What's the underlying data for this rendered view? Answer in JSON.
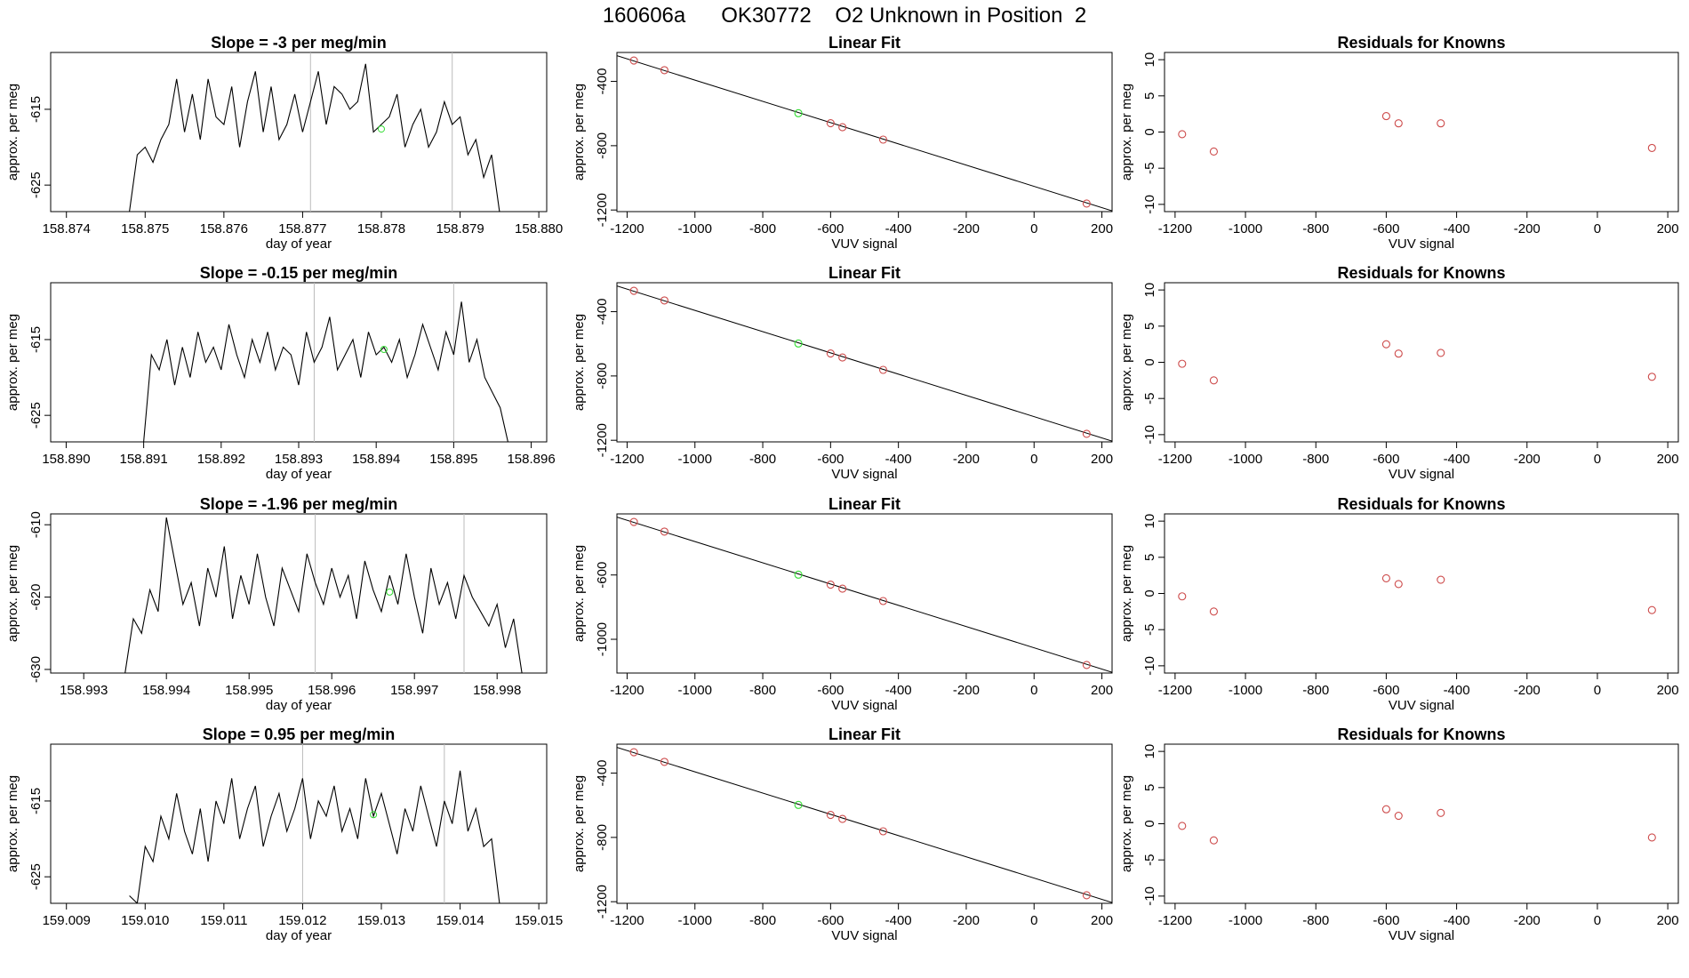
{
  "title": "160606a      OK30772    O2 Unknown in Position  2",
  "colors": {
    "trace": "#000000",
    "known": "#cd4b4b",
    "unknown": "#33dd33",
    "gridline": "#bbbbbb",
    "fitline": "#000000"
  },
  "chart_data": [
    {
      "type": "line",
      "panel": "time-series",
      "row": 1,
      "title": "Slope =  -3  per meg/min",
      "xlabel": "day of year",
      "ylabel": "approx. per meg",
      "xlim": [
        158.8738,
        158.8801
      ],
      "ylim": [
        -628.5,
        -607.5
      ],
      "xticks": [
        "158.874",
        "158.875",
        "158.876",
        "158.877",
        "158.878",
        "158.879",
        "158.880"
      ],
      "yticks": [
        "-615",
        "-625"
      ],
      "vlines": [
        158.8771,
        158.8789
      ],
      "series": [
        {
          "x": [
            158.8748,
            158.8749,
            158.875,
            158.8751,
            158.8752,
            158.8753,
            158.8754,
            158.8755,
            158.8756,
            158.8757,
            158.8758,
            158.8759,
            158.876,
            158.8761,
            158.8762,
            158.8763,
            158.8764,
            158.8765,
            158.8766,
            158.8767,
            158.8768,
            158.8769,
            158.877,
            158.8771,
            158.8772,
            158.8773,
            158.8774,
            158.8775,
            158.8776,
            158.8777,
            158.8778,
            158.8779,
            158.878,
            158.8781,
            158.8782,
            158.8783,
            158.8784,
            158.8785,
            158.8786,
            158.8787,
            158.8788,
            158.8789,
            158.879,
            158.8791,
            158.8792,
            158.8793,
            158.8794,
            158.8795
          ],
          "y": [
            -628.5,
            -621,
            -620,
            -622,
            -619,
            -617,
            -611,
            -618,
            -613,
            -619,
            -611,
            -616,
            -617,
            -612,
            -620,
            -614,
            -610,
            -618,
            -612,
            -619,
            -617,
            -613,
            -618,
            -614,
            -610,
            -617,
            -612,
            -613,
            -615,
            -614,
            -609,
            -618,
            -617,
            -616,
            -613,
            -620,
            -617,
            -615,
            -620,
            -618,
            -614,
            -617,
            -616,
            -621,
            -619,
            -624,
            -621,
            -628.5
          ]
        }
      ],
      "unknown_point": {
        "x": 158.878,
        "y": -617.6
      }
    },
    {
      "type": "scatter",
      "panel": "linear-fit",
      "row": 1,
      "title": "Linear Fit",
      "xlabel": "VUV signal",
      "ylabel": "approx. per meg",
      "xlim": [
        -1230,
        230
      ],
      "ylim": [
        -1210,
        -220
      ],
      "xticks": [
        "-1200",
        "-1000",
        "-800",
        "-600",
        "-400",
        "-200",
        "0",
        "200"
      ],
      "yticks": [
        "-400",
        "-800",
        "-1200"
      ],
      "line": {
        "x": [
          -1230,
          230
        ],
        "y": [
          -240,
          -1205
        ]
      },
      "knowns": {
        "x": [
          -1180,
          -1090,
          -600,
          -565,
          -445,
          155
        ],
        "y": [
          -270,
          -330,
          -660,
          -685,
          -762,
          -1160
        ]
      },
      "unknown": {
        "x": -695,
        "y": -598
      }
    },
    {
      "type": "scatter",
      "panel": "residuals",
      "row": 1,
      "title": "Residuals for Knowns",
      "xlabel": "VUV signal",
      "ylabel": "approx. per meg",
      "xlim": [
        -1230,
        230
      ],
      "ylim": [
        -11,
        11
      ],
      "xticks": [
        "-1200",
        "-1000",
        "-800",
        "-600",
        "-400",
        "-200",
        "0",
        "200"
      ],
      "yticks": [
        "10",
        "5",
        "0",
        "-5",
        "-10"
      ],
      "knowns": {
        "x": [
          -1180,
          -1090,
          -600,
          -565,
          -445,
          155
        ],
        "y": [
          -0.3,
          -2.7,
          2.2,
          1.2,
          1.2,
          -2.2
        ]
      }
    },
    {
      "type": "line",
      "panel": "time-series",
      "row": 2,
      "title": "Slope =  -0.15  per meg/min",
      "xlabel": "day of year",
      "ylabel": "approx. per meg",
      "xlim": [
        158.8898,
        158.8962
      ],
      "ylim": [
        -628.5,
        -607.5
      ],
      "xticks": [
        "158.890",
        "158.891",
        "158.892",
        "158.893",
        "158.894",
        "158.895",
        "158.896"
      ],
      "yticks": [
        "-615",
        "-625"
      ],
      "vlines": [
        158.8932,
        158.895
      ],
      "series": [
        {
          "x": [
            158.891,
            158.8911,
            158.8912,
            158.8913,
            158.8914,
            158.8915,
            158.8916,
            158.8917,
            158.8918,
            158.8919,
            158.892,
            158.8921,
            158.8922,
            158.8923,
            158.8924,
            158.8925,
            158.8926,
            158.8927,
            158.8928,
            158.8929,
            158.893,
            158.8931,
            158.8932,
            158.8933,
            158.8934,
            158.8935,
            158.8936,
            158.8937,
            158.8938,
            158.8939,
            158.894,
            158.8941,
            158.8942,
            158.8943,
            158.8944,
            158.8945,
            158.8946,
            158.8947,
            158.8948,
            158.8949,
            158.895,
            158.8951,
            158.8952,
            158.8953,
            158.8954,
            158.8955,
            158.8956,
            158.8957
          ],
          "y": [
            -628.5,
            -617,
            -619,
            -615,
            -621,
            -616,
            -620,
            -614,
            -618,
            -616,
            -619,
            -613,
            -617,
            -620,
            -615,
            -618,
            -614,
            -619,
            -616,
            -617,
            -621,
            -614,
            -618,
            -616,
            -612,
            -619,
            -617,
            -615,
            -620,
            -614,
            -617,
            -616,
            -618,
            -615,
            -620,
            -617,
            -613,
            -616,
            -619,
            -614,
            -617,
            -610,
            -618,
            -615,
            -620,
            -622,
            -624,
            -628.5
          ]
        }
      ],
      "unknown_point": {
        "x": 158.8941,
        "y": -616.3
      }
    },
    {
      "type": "scatter",
      "panel": "linear-fit",
      "row": 2,
      "title": "Linear Fit",
      "xlabel": "VUV signal",
      "ylabel": "approx. per meg",
      "xlim": [
        -1230,
        230
      ],
      "ylim": [
        -1210,
        -220
      ],
      "xticks": [
        "-1200",
        "-1000",
        "-800",
        "-600",
        "-400",
        "-200",
        "0",
        "200"
      ],
      "yticks": [
        "-400",
        "-800",
        "-1200"
      ],
      "line": {
        "x": [
          -1230,
          230
        ],
        "y": [
          -240,
          -1205
        ]
      },
      "knowns": {
        "x": [
          -1180,
          -1090,
          -600,
          -565,
          -445,
          155
        ],
        "y": [
          -270,
          -330,
          -660,
          -685,
          -762,
          -1160
        ]
      },
      "unknown": {
        "x": -695,
        "y": -598
      }
    },
    {
      "type": "scatter",
      "panel": "residuals",
      "row": 2,
      "title": "Residuals for Knowns",
      "xlabel": "VUV signal",
      "ylabel": "approx. per meg",
      "xlim": [
        -1230,
        230
      ],
      "ylim": [
        -11,
        11
      ],
      "xticks": [
        "-1200",
        "-1000",
        "-800",
        "-600",
        "-400",
        "-200",
        "0",
        "200"
      ],
      "yticks": [
        "10",
        "5",
        "0",
        "-5",
        "-10"
      ],
      "knowns": {
        "x": [
          -1180,
          -1090,
          -600,
          -565,
          -445,
          155
        ],
        "y": [
          -0.2,
          -2.5,
          2.5,
          1.2,
          1.3,
          -2.0
        ]
      }
    },
    {
      "type": "line",
      "panel": "time-series",
      "row": 3,
      "title": "Slope =  -1.96  per meg/min",
      "xlabel": "day of year",
      "ylabel": "approx. per meg",
      "xlim": [
        158.9926,
        158.9986
      ],
      "ylim": [
        -630.5,
        -608.5
      ],
      "xticks": [
        "158.993",
        "158.994",
        "158.995",
        "158.996",
        "158.997",
        "158.998"
      ],
      "yticks": [
        "-610",
        "-620",
        "-630"
      ],
      "vlines": [
        158.9958,
        158.9976
      ],
      "series": [
        {
          "x": [
            158.9935,
            158.9936,
            158.9937,
            158.9938,
            158.9939,
            158.994,
            158.9941,
            158.9942,
            158.9943,
            158.9944,
            158.9945,
            158.9946,
            158.9947,
            158.9948,
            158.9949,
            158.995,
            158.9951,
            158.9952,
            158.9953,
            158.9954,
            158.9955,
            158.9956,
            158.9957,
            158.9958,
            158.9959,
            158.996,
            158.9961,
            158.9962,
            158.9963,
            158.9964,
            158.9965,
            158.9966,
            158.9967,
            158.9968,
            158.9969,
            158.997,
            158.9971,
            158.9972,
            158.9973,
            158.9974,
            158.9975,
            158.9976,
            158.9977,
            158.9978,
            158.9979,
            158.998,
            158.9981,
            158.9982,
            158.9983
          ],
          "y": [
            -630.5,
            -623,
            -625,
            -619,
            -622,
            -609,
            -615,
            -621,
            -618,
            -624,
            -616,
            -620,
            -613,
            -623,
            -617,
            -621,
            -614,
            -620,
            -624,
            -616,
            -619,
            -622,
            -614,
            -618,
            -621,
            -616,
            -620,
            -617,
            -623,
            -615,
            -619,
            -622,
            -617,
            -621,
            -614,
            -620,
            -625,
            -616,
            -621,
            -618,
            -623,
            -617,
            -620,
            -622,
            -624,
            -621,
            -627,
            -623,
            -630.5
          ]
        }
      ],
      "unknown_point": {
        "x": 158.9967,
        "y": -619.3
      }
    },
    {
      "type": "scatter",
      "panel": "linear-fit",
      "row": 3,
      "title": "Linear Fit",
      "xlabel": "VUV signal",
      "ylabel": "approx. per meg",
      "xlim": [
        -1230,
        230
      ],
      "ylim": [
        -1210,
        -220
      ],
      "xticks": [
        "-1200",
        "-1000",
        "-800",
        "-600",
        "-400",
        "-200",
        "0",
        "200"
      ],
      "yticks": [
        "-600",
        "-1000"
      ],
      "line": {
        "x": [
          -1230,
          230
        ],
        "y": [
          -240,
          -1205
        ]
      },
      "knowns": {
        "x": [
          -1180,
          -1090,
          -600,
          -565,
          -445,
          155
        ],
        "y": [
          -270,
          -330,
          -660,
          -685,
          -762,
          -1160
        ]
      },
      "unknown": {
        "x": -695,
        "y": -598
      }
    },
    {
      "type": "scatter",
      "panel": "residuals",
      "row": 3,
      "title": "Residuals for Knowns",
      "xlabel": "VUV signal",
      "ylabel": "approx. per meg",
      "xlim": [
        -1230,
        230
      ],
      "ylim": [
        -11,
        11
      ],
      "xticks": [
        "-1200",
        "-1000",
        "-800",
        "-600",
        "-400",
        "-200",
        "0",
        "200"
      ],
      "yticks": [
        "10",
        "5",
        "0",
        "-5",
        "-10"
      ],
      "knowns": {
        "x": [
          -1180,
          -1090,
          -600,
          -565,
          -445,
          155
        ],
        "y": [
          -0.4,
          -2.5,
          2.1,
          1.3,
          1.9,
          -2.3
        ]
      }
    },
    {
      "type": "line",
      "panel": "time-series",
      "row": 4,
      "title": "Slope =  0.95  per meg/min",
      "xlabel": "day of year",
      "ylabel": "approx. per meg",
      "xlim": [
        159.0088,
        159.0151
      ],
      "ylim": [
        -628.5,
        -607.5
      ],
      "xticks": [
        "159.009",
        "159.010",
        "159.011",
        "159.012",
        "159.013",
        "159.014",
        "159.015"
      ],
      "yticks": [
        "-615",
        "-625"
      ],
      "vlines": [
        159.012,
        159.0138
      ],
      "series": [
        {
          "x": [
            159.0098,
            159.0099,
            159.01,
            159.0101,
            159.0102,
            159.0103,
            159.0104,
            159.0105,
            159.0106,
            159.0107,
            159.0108,
            159.0109,
            159.011,
            159.0111,
            159.0112,
            159.0113,
            159.0114,
            159.0115,
            159.0116,
            159.0117,
            159.0118,
            159.0119,
            159.012,
            159.0121,
            159.0122,
            159.0123,
            159.0124,
            159.0125,
            159.0126,
            159.0127,
            159.0128,
            159.0129,
            159.013,
            159.0131,
            159.0132,
            159.0133,
            159.0134,
            159.0135,
            159.0136,
            159.0137,
            159.0138,
            159.0139,
            159.014,
            159.0141,
            159.0142,
            159.0143,
            159.0144,
            159.0145
          ],
          "y": [
            -627.5,
            -628.5,
            -621,
            -623,
            -617,
            -620,
            -614,
            -619,
            -622,
            -616,
            -623,
            -615,
            -618,
            -612,
            -620,
            -616,
            -613,
            -621,
            -617,
            -614,
            -619,
            -616,
            -612,
            -620,
            -615,
            -617,
            -613,
            -619,
            -616,
            -620,
            -612,
            -617,
            -614,
            -618,
            -622,
            -616,
            -619,
            -613,
            -617,
            -621,
            -615,
            -618,
            -611,
            -619,
            -616,
            -621,
            -620,
            -628.5
          ]
        }
      ],
      "unknown_point": {
        "x": 159.0129,
        "y": -616.8
      }
    },
    {
      "type": "scatter",
      "panel": "linear-fit",
      "row": 4,
      "title": "Linear Fit",
      "xlabel": "VUV signal",
      "ylabel": "approx. per meg",
      "xlim": [
        -1230,
        230
      ],
      "ylim": [
        -1210,
        -220
      ],
      "xticks": [
        "-1200",
        "-1000",
        "-800",
        "-600",
        "-400",
        "-200",
        "0",
        "200"
      ],
      "yticks": [
        "-400",
        "-800",
        "-1200"
      ],
      "line": {
        "x": [
          -1230,
          230
        ],
        "y": [
          -240,
          -1205
        ]
      },
      "knowns": {
        "x": [
          -1180,
          -1090,
          -600,
          -565,
          -445,
          155
        ],
        "y": [
          -270,
          -330,
          -660,
          -685,
          -762,
          -1160
        ]
      },
      "unknown": {
        "x": -695,
        "y": -598
      }
    },
    {
      "type": "scatter",
      "panel": "residuals",
      "row": 4,
      "title": "Residuals for Knowns",
      "xlabel": "VUV signal",
      "ylabel": "approx. per meg",
      "xlim": [
        -1230,
        230
      ],
      "ylim": [
        -11,
        11
      ],
      "xticks": [
        "-1200",
        "-1000",
        "-800",
        "-600",
        "-400",
        "-200",
        "0",
        "200"
      ],
      "yticks": [
        "10",
        "5",
        "0",
        "-5",
        "-10"
      ],
      "knowns": {
        "x": [
          -1180,
          -1090,
          -600,
          -565,
          -445,
          155
        ],
        "y": [
          -0.3,
          -2.3,
          2.0,
          1.1,
          1.5,
          -1.9
        ]
      }
    }
  ]
}
